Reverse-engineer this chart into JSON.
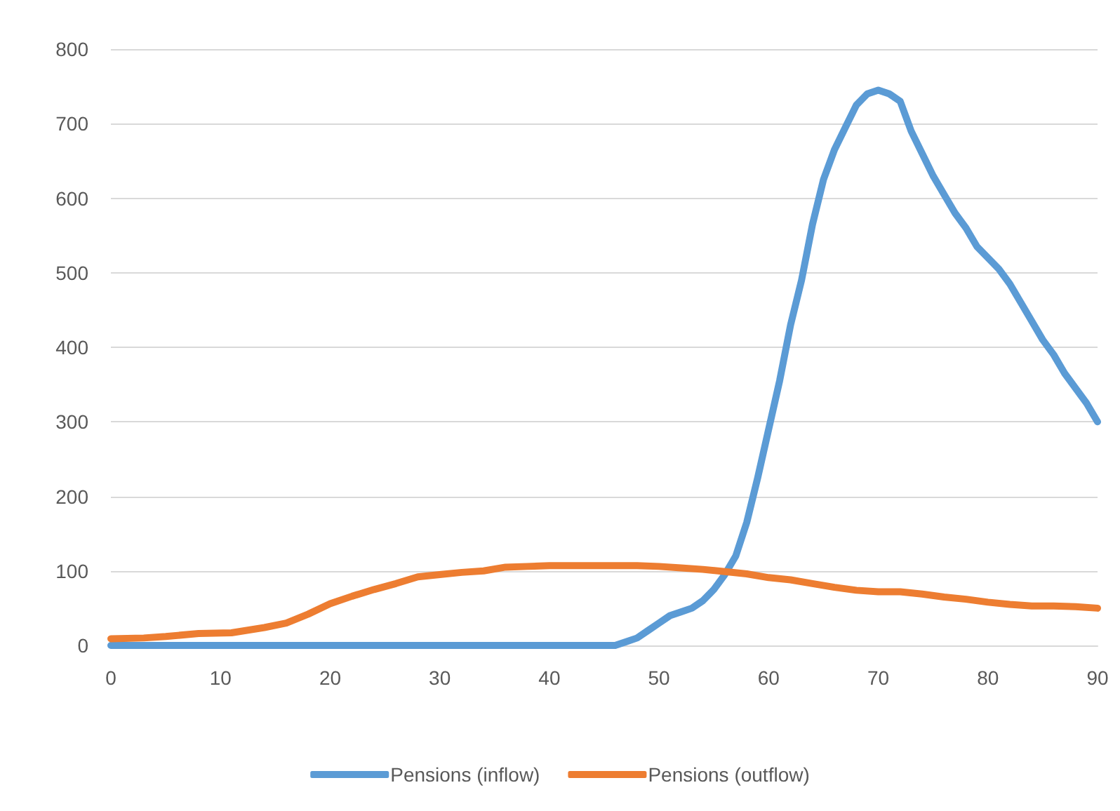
{
  "chart_data": {
    "type": "line",
    "xlim": [
      0,
      90
    ],
    "xticks": [
      0,
      10,
      20,
      30,
      40,
      50,
      60,
      70,
      80,
      90
    ],
    "ylim": [
      0,
      800
    ],
    "yticks": [
      0,
      100,
      200,
      300,
      400,
      500,
      600,
      700,
      800
    ],
    "grid": "y",
    "legend": "bottom",
    "marker": "none",
    "line_style": "solid",
    "series": [
      {
        "name": "Pensions (inflow)",
        "color": "#5b9bd5",
        "x": [
          0,
          46,
          47,
          48,
          49,
          50,
          51,
          52,
          53,
          54,
          55,
          56,
          57,
          58,
          59,
          60,
          61,
          62,
          63,
          64,
          65,
          66,
          67,
          68,
          69,
          70,
          71,
          72,
          73,
          74,
          75,
          76,
          77,
          78,
          79,
          80,
          81,
          82,
          83,
          84,
          85,
          86,
          87,
          88,
          89,
          90
        ],
        "values": [
          0,
          0,
          5,
          10,
          20,
          30,
          40,
          45,
          50,
          60,
          75,
          95,
          120,
          165,
          225,
          290,
          355,
          430,
          490,
          565,
          625,
          665,
          695,
          725,
          740,
          745,
          740,
          730,
          690,
          660,
          630,
          605,
          580,
          560,
          535,
          520,
          505,
          485,
          460,
          435,
          410,
          390,
          365,
          345,
          325,
          300
        ]
      },
      {
        "name": "Pensions (outflow)",
        "color": "#ed7d31",
        "x": [
          0,
          3,
          5,
          8,
          11,
          14,
          16,
          18,
          20,
          22,
          24,
          26,
          28,
          30,
          32,
          34,
          36,
          38,
          40,
          44,
          48,
          50,
          52,
          54,
          56,
          58,
          60,
          62,
          64,
          66,
          68,
          70,
          72,
          74,
          76,
          78,
          80,
          82,
          84,
          86,
          88,
          90
        ],
        "values": [
          9,
          10,
          12,
          16,
          17,
          24,
          30,
          42,
          56,
          66,
          75,
          83,
          92,
          95,
          98,
          100,
          105,
          106,
          107,
          107,
          107,
          106,
          104,
          102,
          99,
          96,
          91,
          88,
          83,
          78,
          74,
          72,
          72,
          69,
          65,
          62,
          58,
          55,
          53,
          53,
          52,
          50
        ]
      }
    ]
  }
}
